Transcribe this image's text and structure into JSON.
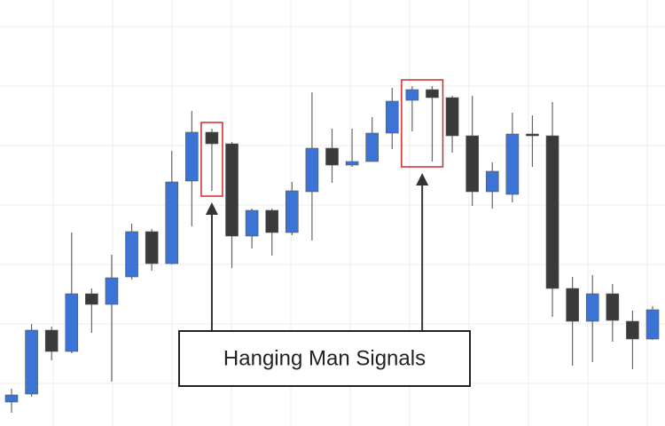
{
  "chart_data": {
    "type": "candlestick",
    "open": [
      27,
      36,
      108,
      84,
      149,
      137,
      168,
      219,
      183,
      276,
      331,
      318,
      214,
      243,
      218,
      264,
      313,
      294,
      298,
      330,
      367,
      379,
      370,
      327,
      264,
      261,
      329,
      327,
      155,
      118,
      149,
      118,
      98
    ],
    "high": [
      42,
      115,
      112,
      218,
      155,
      193,
      228,
      222,
      310,
      355,
      335,
      320,
      245,
      245,
      275,
      376,
      335,
      335,
      348,
      381,
      383,
      383,
      372,
      372,
      297,
      353,
      350,
      365,
      168,
      170,
      160,
      130,
      135
    ],
    "low": [
      15,
      33,
      74,
      82,
      105,
      50,
      165,
      175,
      182,
      225,
      265,
      178,
      200,
      192,
      215,
      209,
      274,
      292,
      298,
      312,
      332,
      298,
      308,
      248,
      245,
      252,
      292,
      123,
      68,
      72,
      95,
      64,
      97
    ],
    "close": [
      35,
      108,
      84,
      149,
      137,
      167,
      219,
      183,
      275,
      331,
      318,
      214,
      243,
      218,
      265,
      313,
      294,
      298,
      330,
      366,
      379,
      370,
      327,
      264,
      287,
      329,
      327,
      155,
      118,
      149,
      119,
      98,
      131
    ],
    "ylim": [
      0,
      480
    ],
    "up_color": "#3c74d6",
    "down_color": "#3a3a3a",
    "highlight_color": "#d02a2a",
    "highlights": [
      [
        10
      ],
      [
        20,
        21
      ]
    ],
    "grid": true,
    "annotation": "Hanging Man Signals"
  }
}
